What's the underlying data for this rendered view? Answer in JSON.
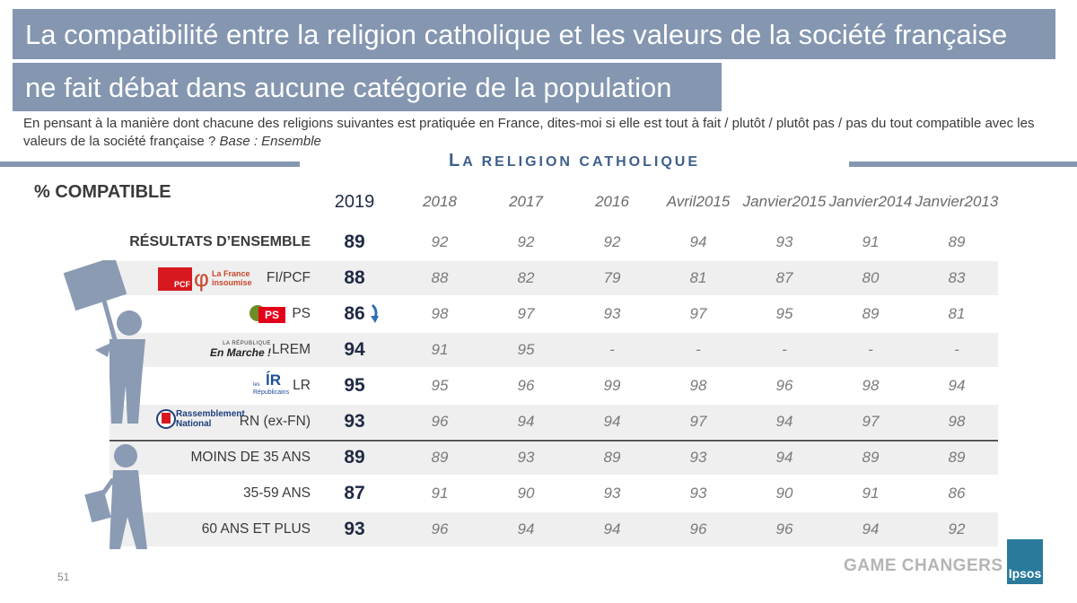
{
  "title": {
    "line1": "La compatibilité entre la religion catholique et les valeurs de la société française",
    "line2": "ne fait débat dans aucune catégorie de la population"
  },
  "subtitle": {
    "text": "En pensant à la manière dont chacune des religions suivantes est pratiquée en France, dites-moi si elle est tout à fait / plutôt / plutôt pas / pas du tout compatible avec les valeurs de la société française ?",
    "base": "Base : Ensemble"
  },
  "section": {
    "first_letter": "L",
    "rest": "A RELIGION CATHOLIQUE"
  },
  "table": {
    "corner_label": "% COMPATIBLE",
    "columns": [
      {
        "line1": "2019",
        "line2": ""
      },
      {
        "line1": "2018",
        "line2": ""
      },
      {
        "line1": "2017",
        "line2": ""
      },
      {
        "line1": "2016",
        "line2": ""
      },
      {
        "line1": "Avril",
        "line2": "2015"
      },
      {
        "line1": "Janvier",
        "line2": "2015"
      },
      {
        "line1": "Janvier",
        "line2": "2014"
      },
      {
        "line1": "Janvier",
        "line2": "2013"
      }
    ],
    "rows": [
      {
        "label": "RÉSULTATS D’ENSEMBLE",
        "values": [
          "89",
          "92",
          "92",
          "92",
          "94",
          "93",
          "91",
          "89"
        ]
      },
      {
        "label": "FI/PCF",
        "values": [
          "88",
          "88",
          "82",
          "79",
          "81",
          "87",
          "80",
          "83"
        ]
      },
      {
        "label": "PS",
        "values": [
          "86",
          "98",
          "97",
          "93",
          "97",
          "95",
          "89",
          "81"
        ]
      },
      {
        "label": "LREM",
        "values": [
          "94",
          "91",
          "95",
          "-",
          "-",
          "-",
          "-",
          "-"
        ]
      },
      {
        "label": "LR",
        "values": [
          "95",
          "95",
          "96",
          "99",
          "98",
          "96",
          "98",
          "94"
        ]
      },
      {
        "label": "RN (ex-FN)",
        "values": [
          "93",
          "96",
          "94",
          "94",
          "97",
          "94",
          "97",
          "98"
        ]
      },
      {
        "label": "MOINS DE 35 ANS",
        "values": [
          "89",
          "89",
          "93",
          "89",
          "93",
          "94",
          "89",
          "89"
        ]
      },
      {
        "label": "35-59 ANS",
        "values": [
          "87",
          "91",
          "90",
          "93",
          "93",
          "90",
          "91",
          "86"
        ]
      },
      {
        "label": "60 ANS ET PLUS",
        "values": [
          "93",
          "96",
          "94",
          "94",
          "96",
          "96",
          "94",
          "92"
        ]
      }
    ]
  },
  "logos": {
    "pcf": "PCF",
    "fi_line1": "La France",
    "fi_line2": "insoumise",
    "ps": "PS",
    "lrem_line1": "LA RÉPUBLIQUE",
    "lrem_line2": "En Marche !",
    "lr_small1": "les",
    "lr_small2": "Républicains",
    "rn_line1": "Rassemblement",
    "rn_line2": "National"
  },
  "footer": {
    "tagline": "GAME CHANGERS",
    "brand": "Ipsos",
    "page": "51"
  },
  "colors": {
    "band": "#8496b0",
    "accent": "#3e5f8c",
    "figure": "#8a9bb3",
    "down_arrow": "#2f6fb5",
    "ipsos": "#2a7a9c"
  }
}
